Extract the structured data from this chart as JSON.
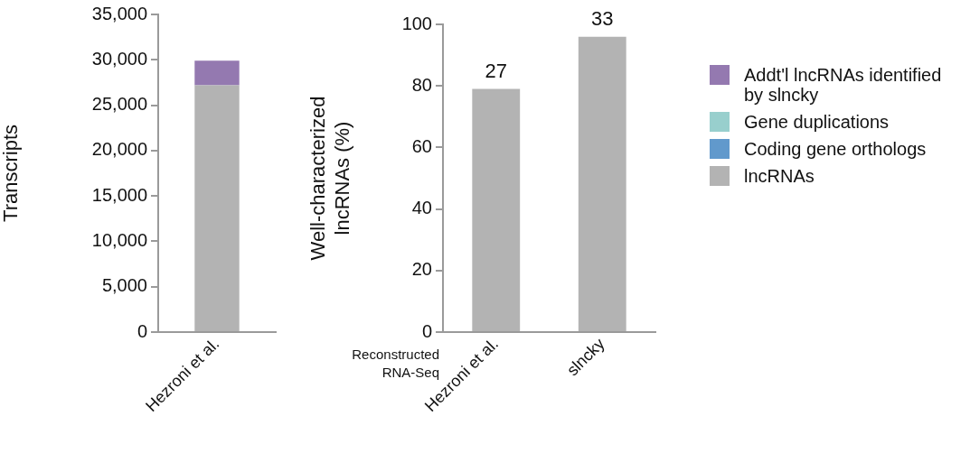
{
  "chart_data": [
    {
      "type": "bar",
      "ylabel": "Transcripts",
      "categories": [
        "Hezroni et al."
      ],
      "stacked": true,
      "ylim": [
        0,
        35000
      ],
      "yticks": [
        {
          "value": 0,
          "label": "0"
        },
        {
          "value": 5000,
          "label": "5,000"
        },
        {
          "value": 10000,
          "label": "10,000"
        },
        {
          "value": 15000,
          "label": "15,000"
        },
        {
          "value": 20000,
          "label": "20,000"
        },
        {
          "value": 25000,
          "label": "25,000"
        },
        {
          "value": 30000,
          "label": "30,000"
        },
        {
          "value": 35000,
          "label": "35,000"
        }
      ],
      "legend": "right",
      "series": [
        {
          "name": "lncRNAs",
          "color": "#b3b3b3",
          "values": [
            27200
          ]
        },
        {
          "name": "Coding gene orthologs",
          "color": "#6199cc",
          "values": [
            0
          ]
        },
        {
          "name": "Gene duplications",
          "color": "#98cfcd",
          "values": [
            0
          ]
        },
        {
          "name": "Addt'l lncRNAs identified by slncky",
          "color": "#9479b0",
          "values": [
            2700
          ]
        }
      ]
    },
    {
      "type": "bar",
      "ylabel": "Well-characterized lncRNAs (%)",
      "categories": [
        "Hezroni et al.",
        "slncky"
      ],
      "values": [
        79,
        96
      ],
      "color": "#b3b3b3",
      "ylim": [
        0,
        100
      ],
      "yticks": [
        0,
        20,
        40,
        60,
        80,
        100
      ],
      "annotations": [
        {
          "text": "27",
          "x": "Hezroni et al.",
          "y": 79
        },
        {
          "text": "33",
          "x": "slncky",
          "y": 96
        },
        "Reconstructed RNA-Seq"
      ]
    }
  ]
}
